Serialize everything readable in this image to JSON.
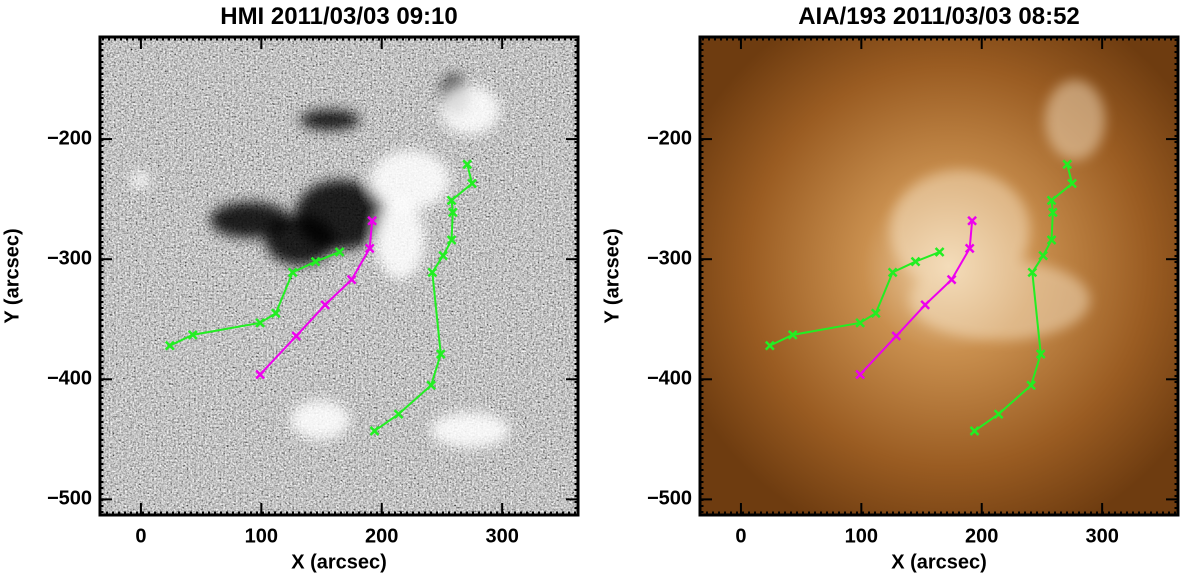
{
  "chart_data": [
    {
      "type": "line",
      "title": "HMI 2011/03/03 09:10",
      "x_label": "X (arcsec)",
      "y_label": "Y (arcsec)",
      "background": "magnetogram",
      "xlim": [
        -34,
        363
      ],
      "ylim": [
        -513,
        -115
      ],
      "xticks": [
        0,
        100,
        200,
        300
      ],
      "yticks": [
        {
          "value": -200,
          "label": "−200"
        },
        {
          "value": -300,
          "label": "−300"
        },
        {
          "value": -400,
          "label": "−400"
        },
        {
          "value": -500,
          "label": "−500"
        }
      ],
      "series": [
        {
          "color": "#22ee22",
          "x": [
            24,
            43,
            99,
            112,
            126,
            145,
            165
          ],
          "values": [
            -372,
            -363,
            -353,
            -345,
            -311,
            -302,
            -294
          ]
        },
        {
          "color": "#ee00ee",
          "x": [
            99,
            129,
            153,
            175,
            190,
            192
          ],
          "values": [
            -396,
            -364,
            -338,
            -317,
            -291,
            -268
          ]
        },
        {
          "color": "#22ee22",
          "x": [
            194,
            214,
            241,
            249,
            242,
            251,
            258,
            259,
            258,
            275,
            271
          ],
          "values": [
            -443,
            -429,
            -405,
            -379,
            -311,
            -297,
            -284,
            -261,
            -251,
            -237,
            -221
          ]
        }
      ]
    },
    {
      "type": "line",
      "title": "AIA/193 2011/03/03 08:52",
      "x_label": "X (arcsec)",
      "y_label": "Y (arcsec)",
      "background": "euv",
      "xlim": [
        -34,
        363
      ],
      "ylim": [
        -513,
        -115
      ],
      "xticks": [
        0,
        100,
        200,
        300
      ],
      "yticks": [
        {
          "value": -200,
          "label": "−200"
        },
        {
          "value": -300,
          "label": "−300"
        },
        {
          "value": -400,
          "label": "−400"
        },
        {
          "value": -500,
          "label": "−500"
        }
      ],
      "series": [
        {
          "color": "#22ee22",
          "x": [
            24,
            43,
            99,
            112,
            126,
            145,
            165
          ],
          "values": [
            -372,
            -363,
            -353,
            -345,
            -311,
            -302,
            -294
          ]
        },
        {
          "color": "#ee00ee",
          "x": [
            99,
            129,
            153,
            175,
            190,
            192
          ],
          "values": [
            -396,
            -364,
            -338,
            -317,
            -291,
            -268
          ]
        },
        {
          "color": "#22ee22",
          "x": [
            194,
            214,
            241,
            249,
            242,
            251,
            258,
            259,
            258,
            275,
            271
          ],
          "values": [
            -443,
            -429,
            -405,
            -379,
            -311,
            -297,
            -284,
            -261,
            -251,
            -237,
            -221
          ]
        }
      ]
    }
  ]
}
